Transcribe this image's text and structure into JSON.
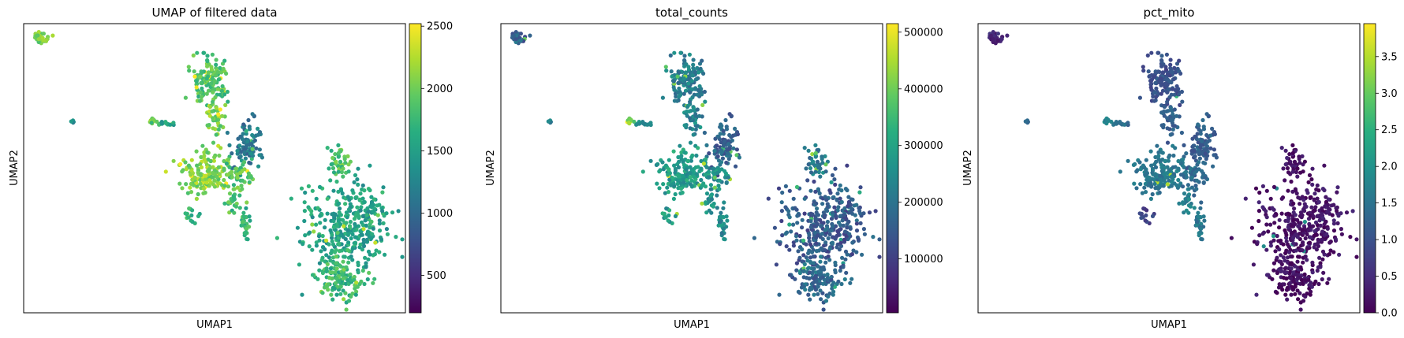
{
  "chart_data": [
    {
      "type": "scatter",
      "title": "UMAP of filtered data",
      "xlabel": "UMAP1",
      "ylabel": "UMAP2",
      "colormap": "viridis",
      "colorbar": {
        "min": 200,
        "max": 2520,
        "ticks": [
          "500",
          "1000",
          "1500",
          "2000",
          "2500"
        ],
        "tick_values": [
          500,
          1000,
          1500,
          2000,
          2500
        ]
      },
      "metric": "n_genes",
      "grid": false
    },
    {
      "type": "scatter",
      "title": "total_counts",
      "xlabel": "UMAP1",
      "ylabel": "UMAP2",
      "colormap": "viridis",
      "colorbar": {
        "min": 5000,
        "max": 515000,
        "ticks": [
          "100000",
          "200000",
          "300000",
          "400000",
          "500000"
        ],
        "tick_values": [
          100000,
          200000,
          300000,
          400000,
          500000
        ]
      },
      "metric": "total_counts",
      "grid": false
    },
    {
      "type": "scatter",
      "title": "pct_mito",
      "xlabel": "UMAP1",
      "ylabel": "UMAP2",
      "colormap": "viridis",
      "colorbar": {
        "min": 0,
        "max": 3.95,
        "ticks": [
          "0.0",
          "0.5",
          "1.0",
          "1.5",
          "2.0",
          "2.5",
          "3.0",
          "3.5"
        ],
        "tick_values": [
          0,
          0.5,
          1.0,
          1.5,
          2.0,
          2.5,
          3.0,
          3.5
        ]
      },
      "metric": "pct_mito",
      "grid": false
    }
  ]
}
